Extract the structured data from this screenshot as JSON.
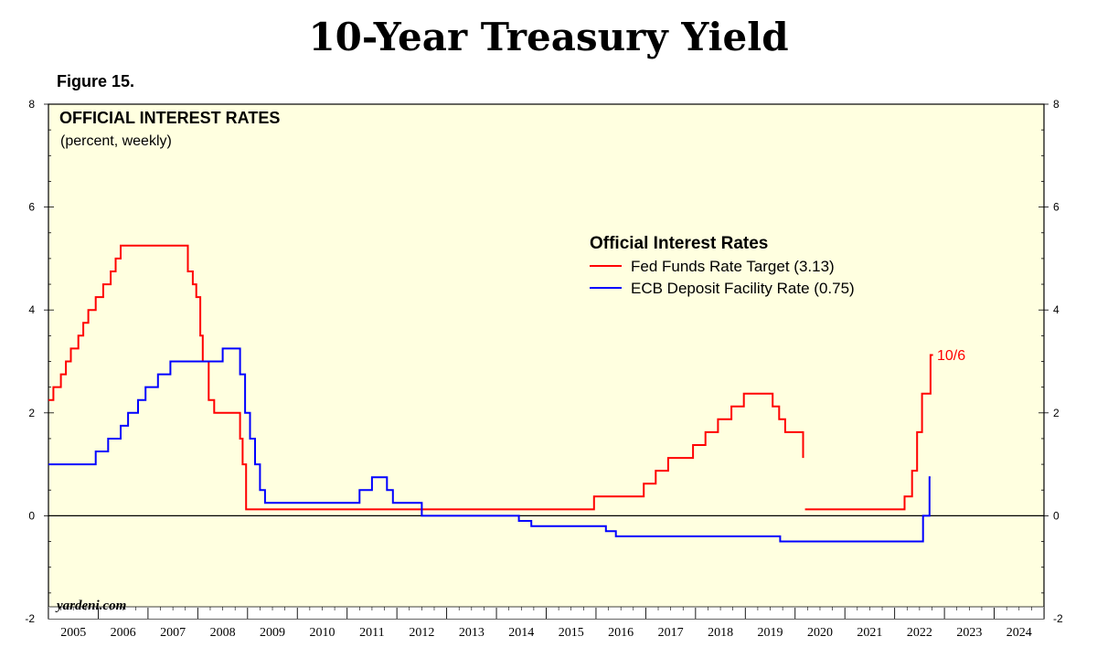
{
  "header": {
    "title": "10-Year Treasury Yield",
    "figure_label": "Figure 15."
  },
  "chart_data": {
    "type": "line",
    "title": "OFFICIAL INTEREST RATES",
    "subtitle": "(percent, weekly)",
    "ylim": [
      -2,
      8
    ],
    "yticks": [
      -2,
      0,
      2,
      4,
      6,
      8
    ],
    "xlim": [
      2005,
      2025
    ],
    "x_tick_labels": [
      "2005",
      "2006",
      "2007",
      "2008",
      "2009",
      "2010",
      "2011",
      "2012",
      "2013",
      "2014",
      "2015",
      "2016",
      "2017",
      "2018",
      "2019",
      "2020",
      "2021",
      "2022",
      "2023",
      "2024"
    ],
    "grid": false,
    "legend": {
      "title": "Official Interest Rates",
      "placement": "top-right",
      "entries": [
        "Fed Funds Rate Target (3.13)",
        "ECB Deposit Facility Rate (0.75)"
      ]
    },
    "annotation": {
      "text": "10/6",
      "series": "Fed Funds Rate Target (3.13)"
    },
    "source_credit": "yardeni.com",
    "colors": {
      "fed": "#ff0000",
      "ecb": "#0000ff",
      "background": "#ffffe0"
    },
    "series": [
      {
        "name": "Fed Funds Rate Target (3.13)",
        "color": "#ff0000",
        "points": [
          [
            2005.0,
            2.25
          ],
          [
            2005.1,
            2.5
          ],
          [
            2005.25,
            2.75
          ],
          [
            2005.35,
            3.0
          ],
          [
            2005.45,
            3.25
          ],
          [
            2005.6,
            3.5
          ],
          [
            2005.7,
            3.75
          ],
          [
            2005.8,
            4.0
          ],
          [
            2005.95,
            4.25
          ],
          [
            2006.1,
            4.5
          ],
          [
            2006.25,
            4.75
          ],
          [
            2006.35,
            5.0
          ],
          [
            2006.45,
            5.25
          ],
          [
            2007.7,
            5.25
          ],
          [
            2007.75,
            5.25
          ],
          [
            2007.8,
            4.75
          ],
          [
            2007.9,
            4.5
          ],
          [
            2007.97,
            4.25
          ],
          [
            2008.05,
            3.5
          ],
          [
            2008.1,
            3.0
          ],
          [
            2008.22,
            2.25
          ],
          [
            2008.33,
            2.0
          ],
          [
            2008.8,
            2.0
          ],
          [
            2008.85,
            1.5
          ],
          [
            2008.9,
            1.0
          ],
          [
            2008.97,
            0.125
          ],
          [
            2015.96,
            0.375
          ],
          [
            2016.96,
            0.625
          ],
          [
            2017.2,
            0.875
          ],
          [
            2017.45,
            1.125
          ],
          [
            2017.95,
            1.375
          ],
          [
            2018.2,
            1.625
          ],
          [
            2018.45,
            1.875
          ],
          [
            2018.72,
            2.125
          ],
          [
            2018.97,
            2.375
          ],
          [
            2019.55,
            2.125
          ],
          [
            2019.68,
            1.875
          ],
          [
            2019.8,
            1.625
          ],
          [
            2020.16,
            1.125
          ]
        ],
        "points_after_gap": [
          [
            2020.2,
            0.125
          ],
          [
            2022.2,
            0.375
          ],
          [
            2022.35,
            0.875
          ],
          [
            2022.45,
            1.625
          ],
          [
            2022.55,
            2.375
          ],
          [
            2022.72,
            3.125
          ],
          [
            2022.77,
            3.125
          ]
        ]
      },
      {
        "name": "ECB Deposit Facility Rate (0.75)",
        "color": "#0000ff",
        "points": [
          [
            2005.0,
            1.0
          ],
          [
            2005.95,
            1.25
          ],
          [
            2006.2,
            1.5
          ],
          [
            2006.45,
            1.75
          ],
          [
            2006.6,
            2.0
          ],
          [
            2006.8,
            2.25
          ],
          [
            2006.95,
            2.5
          ],
          [
            2007.2,
            2.75
          ],
          [
            2007.45,
            3.0
          ],
          [
            2008.5,
            3.25
          ],
          [
            2008.8,
            3.25
          ],
          [
            2008.85,
            2.75
          ],
          [
            2008.95,
            2.0
          ],
          [
            2009.05,
            1.5
          ],
          [
            2009.15,
            1.0
          ],
          [
            2009.25,
            0.5
          ],
          [
            2009.35,
            0.25
          ],
          [
            2011.25,
            0.5
          ],
          [
            2011.5,
            0.75
          ],
          [
            2011.8,
            0.5
          ],
          [
            2011.92,
            0.25
          ],
          [
            2012.5,
            0.0
          ],
          [
            2014.45,
            -0.1
          ],
          [
            2014.7,
            -0.2
          ],
          [
            2016.2,
            -0.3
          ],
          [
            2016.4,
            -0.4
          ],
          [
            2019.7,
            -0.5
          ],
          [
            2022.55,
            -0.5
          ],
          [
            2022.57,
            0.0
          ],
          [
            2022.7,
            0.75
          ],
          [
            2022.72,
            0.75
          ]
        ]
      }
    ]
  }
}
